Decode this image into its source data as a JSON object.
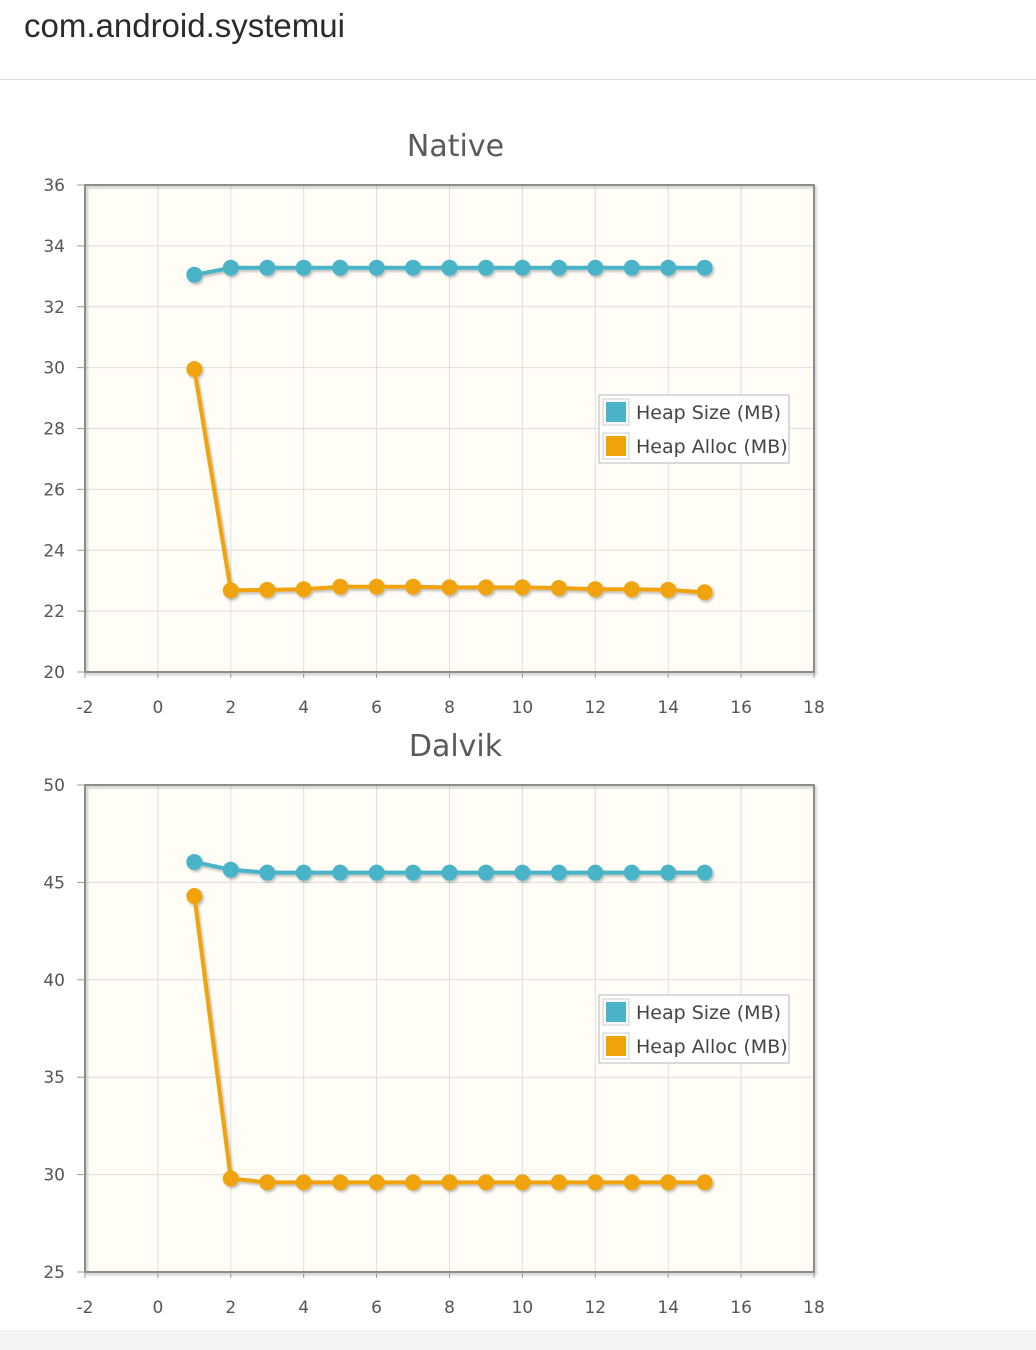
{
  "page": {
    "title": "com.android.systemui"
  },
  "colors": {
    "heap_size": "#4ab3c8",
    "heap_alloc": "#f0a30a",
    "plot_bg": "#fffdf6",
    "grid": "#dedede",
    "frame": "#8c8c8c"
  },
  "chart_data": [
    {
      "type": "line",
      "title": "Native",
      "xlabel": "",
      "ylabel": "",
      "xlim": [
        -2,
        18
      ],
      "ylim": [
        20,
        36
      ],
      "xticks": [
        -2,
        0,
        2,
        4,
        6,
        8,
        10,
        12,
        14,
        16,
        18
      ],
      "yticks": [
        20,
        22,
        24,
        26,
        28,
        30,
        32,
        34,
        36
      ],
      "grid": true,
      "legend": "center-right",
      "x": [
        1,
        2,
        3,
        4,
        5,
        6,
        7,
        8,
        9,
        10,
        11,
        12,
        13,
        14,
        15
      ],
      "series": [
        {
          "name": "Heap Size (MB)",
          "color": "#4ab3c8",
          "values": [
            33.05,
            33.28,
            33.28,
            33.28,
            33.28,
            33.28,
            33.28,
            33.28,
            33.28,
            33.28,
            33.28,
            33.28,
            33.28,
            33.28,
            33.28
          ]
        },
        {
          "name": "Heap Alloc (MB)",
          "color": "#f0a30a",
          "values": [
            29.95,
            22.68,
            22.7,
            22.72,
            22.8,
            22.8,
            22.8,
            22.78,
            22.78,
            22.78,
            22.76,
            22.72,
            22.72,
            22.7,
            22.62
          ]
        }
      ]
    },
    {
      "type": "line",
      "title": "Dalvik",
      "xlabel": "",
      "ylabel": "",
      "xlim": [
        -2,
        18
      ],
      "ylim": [
        25,
        50
      ],
      "xticks": [
        -2,
        0,
        2,
        4,
        6,
        8,
        10,
        12,
        14,
        16,
        18
      ],
      "yticks": [
        25,
        30,
        35,
        40,
        45,
        50
      ],
      "grid": true,
      "legend": "center-right",
      "x": [
        1,
        2,
        3,
        4,
        5,
        6,
        7,
        8,
        9,
        10,
        11,
        12,
        13,
        14,
        15
      ],
      "series": [
        {
          "name": "Heap Size (MB)",
          "color": "#4ab3c8",
          "values": [
            46.05,
            45.65,
            45.5,
            45.5,
            45.5,
            45.5,
            45.5,
            45.5,
            45.5,
            45.5,
            45.5,
            45.5,
            45.5,
            45.5,
            45.5
          ]
        },
        {
          "name": "Heap Alloc (MB)",
          "color": "#f0a30a",
          "values": [
            44.3,
            29.8,
            29.6,
            29.6,
            29.6,
            29.6,
            29.6,
            29.6,
            29.6,
            29.6,
            29.6,
            29.6,
            29.6,
            29.6,
            29.6
          ]
        }
      ]
    }
  ]
}
